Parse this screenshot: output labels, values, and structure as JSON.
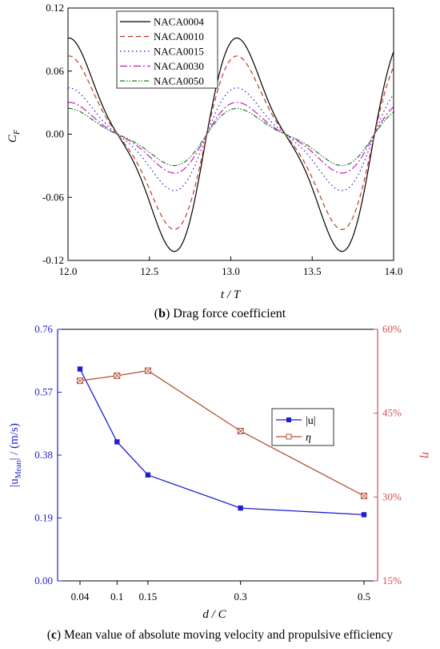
{
  "captions": {
    "b_letter": "b",
    "b_text": " Drag force coefficient",
    "c_letter": "c",
    "c_text": " Mean value of absolute moving velocity and propulsive efficiency"
  },
  "chart_data": [
    {
      "type": "line",
      "xlabel": "t / T",
      "ylabel_main": "C",
      "ylabel_sub": "F",
      "xlim": [
        12.0,
        14.0
      ],
      "ylim": [
        -0.12,
        0.12
      ],
      "xticks": [
        "12.0",
        "12.5",
        "13.0",
        "13.5",
        "14.0"
      ],
      "yticks": [
        "-0.12",
        "-0.06",
        "0.00",
        "0.06",
        "0.12"
      ],
      "legend_position": "top-left",
      "series": [
        {
          "name": "NACA0004",
          "color": "#000000",
          "dash": "",
          "amplitude": 0.0935,
          "peak_values": [
            0.08,
            0.088,
            -0.108,
            -0.098
          ]
        },
        {
          "name": "NACA0010",
          "color": "#c0392b",
          "dash": "6,4",
          "amplitude": 0.076,
          "peak_values": [
            0.064,
            0.072,
            -0.088,
            -0.08
          ]
        },
        {
          "name": "NACA0015",
          "color": "#1f1fd0",
          "dash": "1.5,3.5",
          "amplitude": 0.045,
          "peak_values": [
            0.036,
            0.04,
            -0.05,
            -0.046
          ]
        },
        {
          "name": "NACA0030",
          "color": "#c020c0",
          "dash": "9,3,2,3",
          "amplitude": 0.031,
          "peak_values": [
            0.026,
            0.029,
            -0.034,
            -0.032
          ]
        },
        {
          "name": "NACA0050",
          "color": "#1f7a1f",
          "dash": "6,2,1.5,2,1.5,2",
          "amplitude": 0.025,
          "peak_values": [
            0.02,
            0.023,
            -0.028,
            -0.026
          ]
        }
      ],
      "period": 1.03,
      "phase_x0": 12.33
    },
    {
      "type": "line",
      "xlabel": "d / C",
      "ylabel_left_main": "|u",
      "ylabel_left_sub": "Mean",
      "ylabel_left_tail": "| / (m/s)",
      "ylabel_right": "η",
      "x_categories": [
        "0.04",
        "0.1",
        "0.15",
        "0.3",
        "0.5"
      ],
      "x": [
        0.04,
        0.1,
        0.15,
        0.3,
        0.5
      ],
      "xlim": [
        0.0,
        0.52
      ],
      "ylim_left": [
        0.0,
        0.76
      ],
      "yticks_left": [
        "0.00",
        "0.19",
        "0.38",
        "0.57",
        "0.76"
      ],
      "ylim_right": [
        15,
        60
      ],
      "yticks_right": [
        "15%",
        "30%",
        "45%",
        "60%"
      ],
      "legend_position": "center-right",
      "series": [
        {
          "name": "|u|",
          "axis": "left",
          "color": "#1f1fd0",
          "marker": "square",
          "values": [
            0.64,
            0.42,
            0.32,
            0.22,
            0.2
          ]
        },
        {
          "name": "η",
          "axis": "right",
          "color": "#b5503a",
          "marker": "crossed-square",
          "values": [
            50.8,
            51.7,
            52.6,
            41.8,
            30.2
          ]
        }
      ]
    }
  ]
}
